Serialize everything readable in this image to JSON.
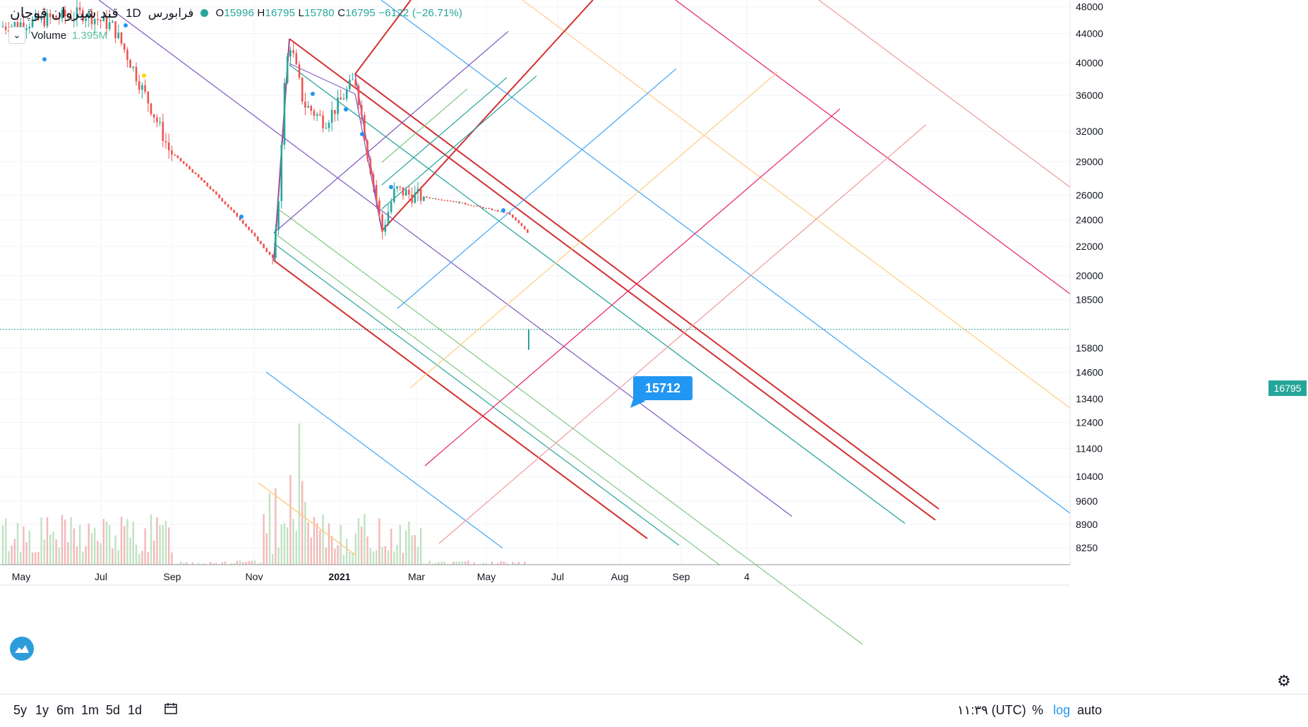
{
  "header": {
    "symbol": "قند شیروان قوچان",
    "interval": "1D",
    "exchange": "فرابورس",
    "ohlc": {
      "o_label": "O",
      "o": "15996",
      "h_label": "H",
      "h": "16795",
      "l_label": "L",
      "l": "15780",
      "c_label": "C",
      "c": "16795",
      "change": "−6122 (−26.71%)"
    }
  },
  "volume_legend": {
    "label": "Volume",
    "value": "1.395M"
  },
  "callout": {
    "value": "15712"
  },
  "last_price": "16795",
  "bottom_bar": {
    "timeframes": [
      "5y",
      "1y",
      "6m",
      "1m",
      "5d",
      "1d"
    ],
    "time": "۱۱:۳۹ (UTC)",
    "percent": "%",
    "log": "log",
    "auto": "auto"
  },
  "colors": {
    "up": "#26a69a",
    "down": "#ef5350",
    "accent": "#2196f3",
    "pitchfork": "#d32f2f"
  },
  "chart_data": {
    "type": "candlestick",
    "scale": "log",
    "y_ticks": [
      48000,
      44000,
      40000,
      36000,
      32000,
      29000,
      26000,
      24000,
      22000,
      20000,
      18500,
      15800,
      14600,
      13400,
      12400,
      11400,
      10400,
      9600,
      8900,
      8250
    ],
    "x_ticks": [
      "May",
      "Jul",
      "Sep",
      "Nov",
      "2021",
      "Mar",
      "May",
      "Jul",
      "Aug",
      "Sep",
      "4"
    ],
    "ylim": [
      7800,
      49000
    ],
    "grid": true,
    "key_points": [
      {
        "date": "2020-10-28",
        "price": 21000
      },
      {
        "date": "2020-11-18",
        "price": 43000
      },
      {
        "date": "2021-01-18",
        "price": 38000
      },
      {
        "date": "2021-02-08",
        "price": 23000
      },
      {
        "date": "2021-06-10",
        "price": 15712
      }
    ]
  }
}
